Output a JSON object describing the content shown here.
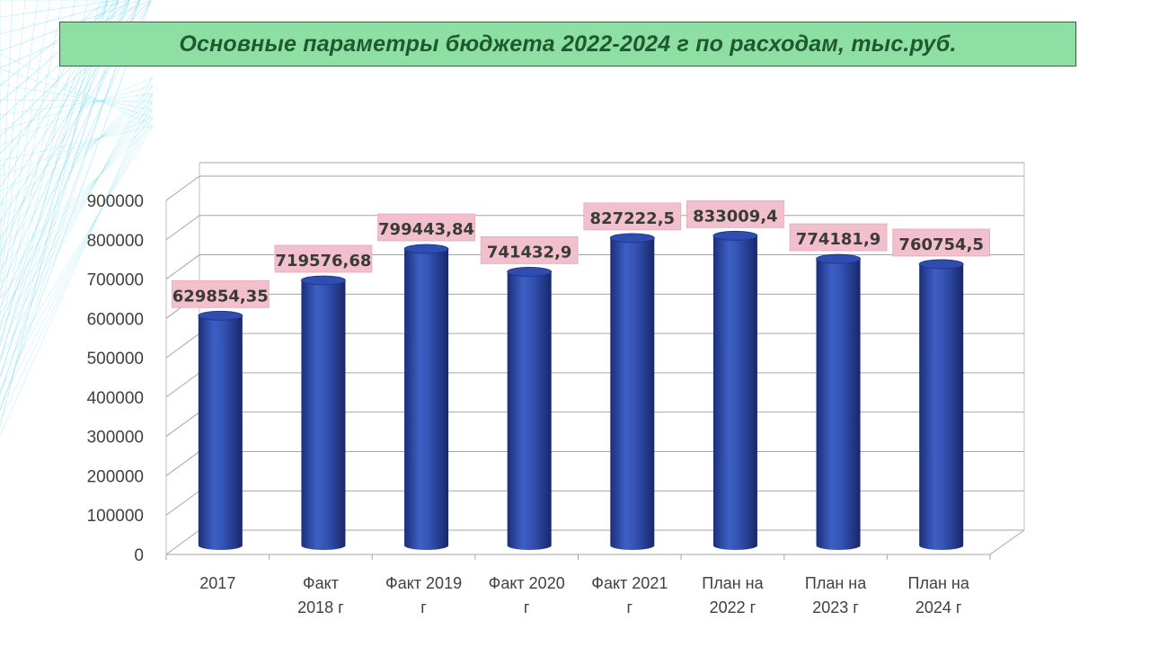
{
  "title": "Основные параметры бюджета 2022-2024 г по расходам, тыс.руб.",
  "colors": {
    "title_bg": "#8ddfa4",
    "title_text": "#1e5a2f",
    "bar": "#2c47a6",
    "label_bg": "#f2bfcc",
    "background_pattern": "#7fdff0"
  },
  "chart_data": {
    "type": "bar",
    "style": "3d-cylinder",
    "grid": true,
    "legend": "none",
    "ylim": [
      0,
      900000
    ],
    "yticks": [
      "0",
      "100000",
      "200000",
      "300000",
      "400000",
      "500000",
      "600000",
      "700000",
      "800000",
      "900000"
    ],
    "categories": [
      [
        "2017"
      ],
      [
        "Факт",
        "2018 г"
      ],
      [
        "Факт 2019",
        "г"
      ],
      [
        "Факт 2020",
        "г"
      ],
      [
        "Факт 2021",
        "г"
      ],
      [
        "План на",
        "2022 г"
      ],
      [
        "План на",
        "2023 г"
      ],
      [
        "План на",
        "2024 г"
      ]
    ],
    "values": [
      629854.35,
      719576.68,
      799443.84,
      741432.9,
      827222.5,
      833009.4,
      774181.9,
      760754.5
    ],
    "value_labels": [
      "629854,35",
      "719576,68",
      "799443,84",
      "741432,9",
      "827222,5",
      "833009,4",
      "774181,9",
      "760754,5"
    ]
  }
}
